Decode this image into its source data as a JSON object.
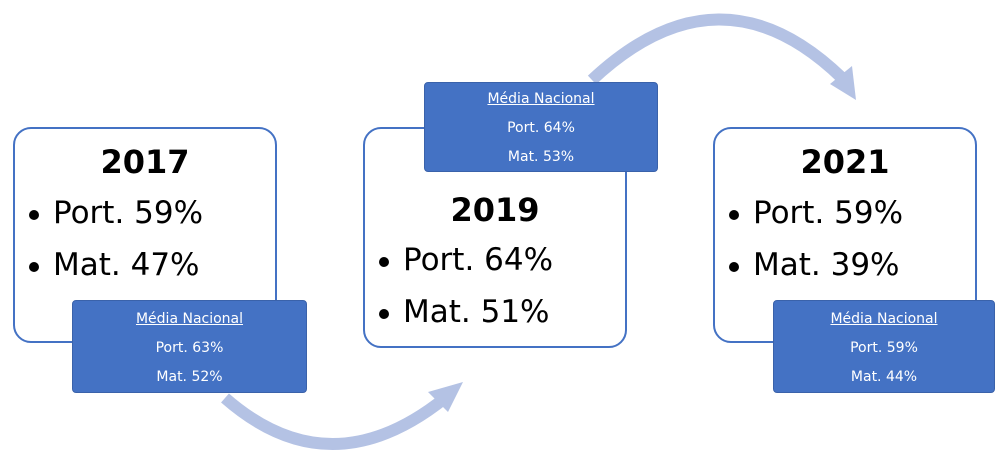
{
  "nodes": [
    {
      "year": "2017",
      "items": [
        "Port. 59%",
        "Mat. 47%"
      ],
      "national": {
        "title": "Média Nacional",
        "items": [
          "Port. 63%",
          "Mat. 52%"
        ]
      }
    },
    {
      "year": "2019",
      "items": [
        "Port. 64%",
        "Mat. 51%"
      ],
      "national": {
        "title": "Média Nacional",
        "items": [
          "Port. 64%",
          "Mat. 53%"
        ]
      }
    },
    {
      "year": "2021",
      "items": [
        "Port. 59%",
        "Mat. 39%"
      ],
      "national": {
        "title": "Média Nacional",
        "items": [
          "Port. 59%",
          "Mat. 44%"
        ]
      }
    }
  ]
}
